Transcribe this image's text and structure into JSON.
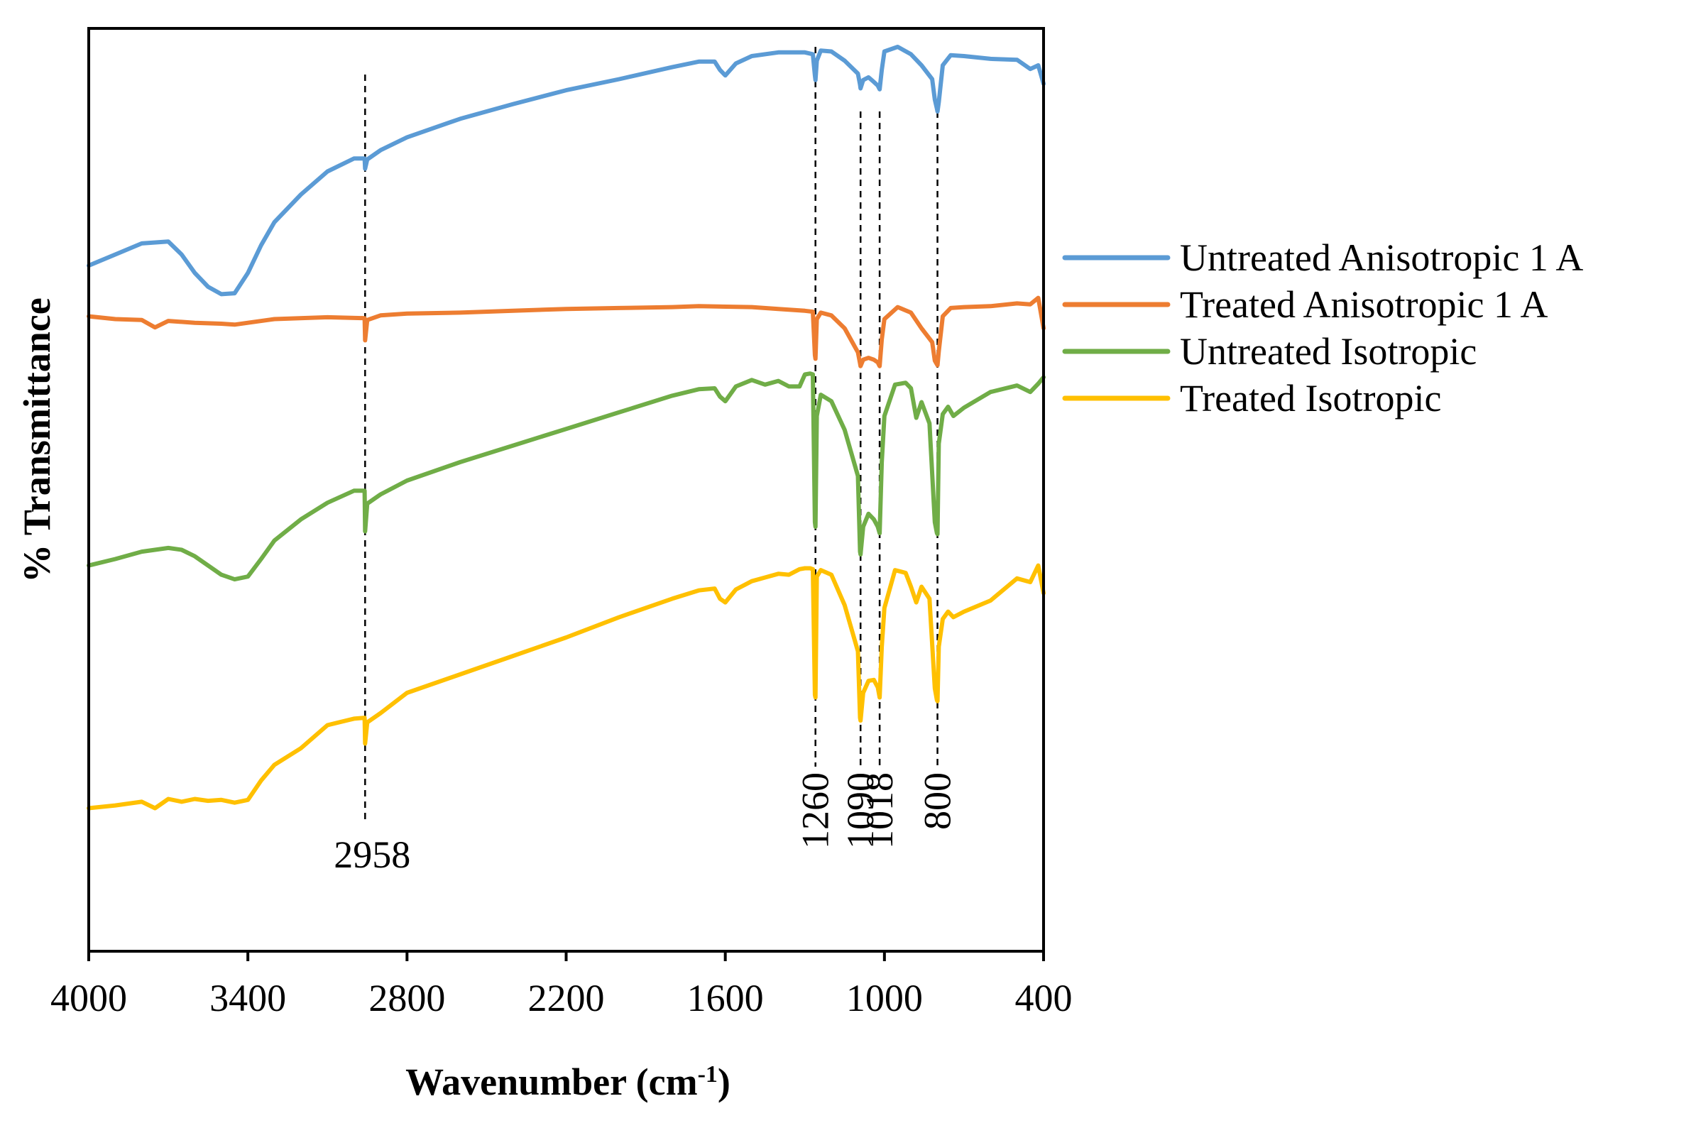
{
  "chart_data": {
    "type": "line",
    "title": "",
    "xlabel": "Wavenumber",
    "xlabel_unit": "(cm",
    "xlabel_unit_sup": "-1",
    "xlabel_unit_close": ")",
    "ylabel": "% Transmittance",
    "xlim": [
      4000,
      400
    ],
    "x_reversed": true,
    "ylim": [
      0,
      100
    ],
    "y_ticks_shown": false,
    "grid": false,
    "legend_position": "right",
    "x_ticks": [
      "4000",
      "3400",
      "2800",
      "2200",
      "1600",
      "1000",
      "400"
    ],
    "x_tick_values": [
      4000,
      3400,
      2800,
      2200,
      1600,
      1000,
      400
    ],
    "peak_markers": [
      {
        "label": "2958",
        "wavenumber": 2958,
        "top": 95,
        "bottom": 14,
        "orientation": "horizontal"
      },
      {
        "label": "1260",
        "wavenumber": 1260,
        "top": 98,
        "bottom": 20,
        "orientation": "vertical"
      },
      {
        "label": "1090",
        "wavenumber": 1090,
        "top": 91,
        "bottom": 20,
        "orientation": "vertical"
      },
      {
        "label": "1018",
        "wavenumber": 1018,
        "top": 91,
        "bottom": 20,
        "orientation": "vertical"
      },
      {
        "label": "800",
        "wavenumber": 800,
        "top": 91,
        "bottom": 20,
        "orientation": "vertical"
      }
    ],
    "series": [
      {
        "name": "Untreated Anisotropic 1 A",
        "color": "#5B9BD5",
        "x": [
          4000,
          3900,
          3800,
          3700,
          3650,
          3600,
          3550,
          3500,
          3450,
          3400,
          3350,
          3300,
          3200,
          3100,
          3000,
          2960,
          2958,
          2950,
          2900,
          2800,
          2600,
          2400,
          2200,
          2000,
          1800,
          1700,
          1640,
          1620,
          1600,
          1560,
          1500,
          1400,
          1300,
          1270,
          1262,
          1260,
          1255,
          1240,
          1200,
          1150,
          1100,
          1092,
          1090,
          1080,
          1060,
          1040,
          1025,
          1018,
          1010,
          1000,
          950,
          900,
          860,
          820,
          810,
          802,
          800,
          795,
          780,
          750,
          700,
          600,
          500,
          450,
          420,
          400
        ],
        "y": [
          74.3,
          75.5,
          76.7,
          76.9,
          75.5,
          73.5,
          72,
          71.2,
          71.3,
          73.5,
          76.5,
          79,
          82,
          84.5,
          85.9,
          85.9,
          84.8,
          85.8,
          86.8,
          88.2,
          90.2,
          91.8,
          93.3,
          94.5,
          95.8,
          96.4,
          96.4,
          95.5,
          94.9,
          96.2,
          97,
          97.4,
          97.4,
          97.2,
          94.9,
          94.4,
          96.5,
          97.6,
          97.5,
          96.5,
          95.1,
          93.9,
          93.5,
          94.4,
          94.7,
          94.2,
          93.8,
          93.4,
          95.5,
          97.5,
          98,
          97.2,
          96,
          94.5,
          92.3,
          91.3,
          91,
          92,
          96,
          97.1,
          97,
          96.7,
          96.6,
          95.6,
          96,
          94
        ]
      },
      {
        "name": "Treated Anisotropic 1 A",
        "color": "#ED7D31",
        "x": [
          4000,
          3900,
          3800,
          3750,
          3700,
          3600,
          3500,
          3450,
          3400,
          3300,
          3100,
          2960,
          2958,
          2950,
          2900,
          2800,
          2600,
          2400,
          2200,
          2000,
          1800,
          1700,
          1500,
          1400,
          1300,
          1270,
          1262,
          1260,
          1255,
          1240,
          1200,
          1150,
          1100,
          1092,
          1090,
          1080,
          1060,
          1040,
          1025,
          1018,
          1010,
          1000,
          950,
          900,
          860,
          820,
          810,
          802,
          800,
          795,
          780,
          750,
          700,
          600,
          500,
          450,
          420,
          400
        ],
        "y": [
          68.8,
          68.5,
          68.4,
          67.6,
          68.3,
          68.1,
          68,
          67.9,
          68.1,
          68.5,
          68.7,
          68.6,
          66.2,
          68.4,
          68.9,
          69.1,
          69.2,
          69.4,
          69.6,
          69.7,
          69.8,
          69.9,
          69.8,
          69.6,
          69.4,
          69.3,
          64.6,
          64.2,
          68.5,
          69.2,
          68.9,
          67.5,
          64.9,
          63.7,
          63.4,
          64.1,
          64.3,
          64.1,
          63.8,
          63.4,
          66.3,
          68.5,
          69.8,
          69.2,
          67.5,
          66,
          64,
          63.6,
          63.5,
          65,
          68.8,
          69.7,
          69.8,
          69.9,
          70.2,
          70.1,
          70.8,
          67.5
        ]
      },
      {
        "name": "Untreated Isotropic",
        "color": "#70AD47",
        "x": [
          4000,
          3900,
          3800,
          3700,
          3650,
          3600,
          3550,
          3500,
          3450,
          3400,
          3350,
          3300,
          3200,
          3100,
          3000,
          2960,
          2958,
          2950,
          2900,
          2800,
          2600,
          2400,
          2200,
          2000,
          1800,
          1700,
          1640,
          1620,
          1600,
          1560,
          1500,
          1450,
          1400,
          1360,
          1320,
          1300,
          1280,
          1270,
          1262,
          1260,
          1255,
          1240,
          1200,
          1150,
          1100,
          1092,
          1090,
          1080,
          1060,
          1040,
          1025,
          1018,
          1010,
          1000,
          960,
          920,
          900,
          880,
          860,
          830,
          810,
          802,
          800,
          795,
          780,
          760,
          740,
          700,
          600,
          500,
          450,
          420,
          400
        ],
        "y": [
          41.8,
          42.5,
          43.3,
          43.7,
          43.5,
          42.8,
          41.8,
          40.8,
          40.3,
          40.6,
          42.5,
          44.5,
          46.8,
          48.6,
          49.9,
          49.9,
          45.5,
          48.5,
          49.5,
          51,
          53,
          54.8,
          56.6,
          58.4,
          60.2,
          60.9,
          61,
          60.1,
          59.6,
          61.2,
          61.9,
          61.4,
          61.8,
          61.2,
          61.2,
          62.5,
          62.6,
          62.5,
          46.5,
          46,
          58,
          60.3,
          59.6,
          56.5,
          51.5,
          43.3,
          43,
          46,
          47.4,
          46.8,
          46,
          45.3,
          53,
          58,
          61.4,
          61.6,
          61,
          57.8,
          59.5,
          57.2,
          46.5,
          45.3,
          45.2,
          55,
          58.2,
          59,
          58,
          58.9,
          60.6,
          61.3,
          60.6,
          61.5,
          62.2
        ]
      },
      {
        "name": "Treated Isotropic",
        "color": "#FFC000",
        "x": [
          4000,
          3900,
          3800,
          3750,
          3700,
          3650,
          3600,
          3550,
          3500,
          3450,
          3400,
          3350,
          3300,
          3200,
          3100,
          3000,
          2960,
          2958,
          2950,
          2900,
          2800,
          2600,
          2400,
          2200,
          2000,
          1800,
          1700,
          1640,
          1620,
          1600,
          1560,
          1500,
          1450,
          1400,
          1360,
          1320,
          1300,
          1280,
          1270,
          1262,
          1260,
          1255,
          1240,
          1200,
          1150,
          1100,
          1092,
          1090,
          1080,
          1060,
          1040,
          1025,
          1018,
          1010,
          1000,
          960,
          920,
          900,
          880,
          860,
          830,
          810,
          802,
          800,
          795,
          780,
          760,
          740,
          700,
          600,
          500,
          450,
          420,
          400
        ],
        "y": [
          15.5,
          15.8,
          16.2,
          15.5,
          16.5,
          16.2,
          16.5,
          16.3,
          16.4,
          16.1,
          16.4,
          18.5,
          20.2,
          22,
          24.5,
          25.2,
          25.3,
          22.5,
          24.8,
          25.8,
          28,
          30,
          32,
          34,
          36.2,
          38.2,
          39.1,
          39.3,
          38.2,
          37.8,
          39.2,
          40.1,
          40.5,
          40.9,
          40.8,
          41.4,
          41.5,
          41.5,
          41.4,
          27.8,
          27.5,
          40.6,
          41.3,
          40.8,
          37.5,
          32.5,
          25.3,
          25,
          28,
          29.3,
          29.4,
          28.6,
          27.5,
          33,
          37.2,
          41.3,
          41,
          39.5,
          37.8,
          39.5,
          38.2,
          28.5,
          27.2,
          27.1,
          33,
          36,
          36.8,
          36.2,
          36.8,
          38,
          40.4,
          40,
          41.8,
          38.8
        ]
      }
    ]
  }
}
